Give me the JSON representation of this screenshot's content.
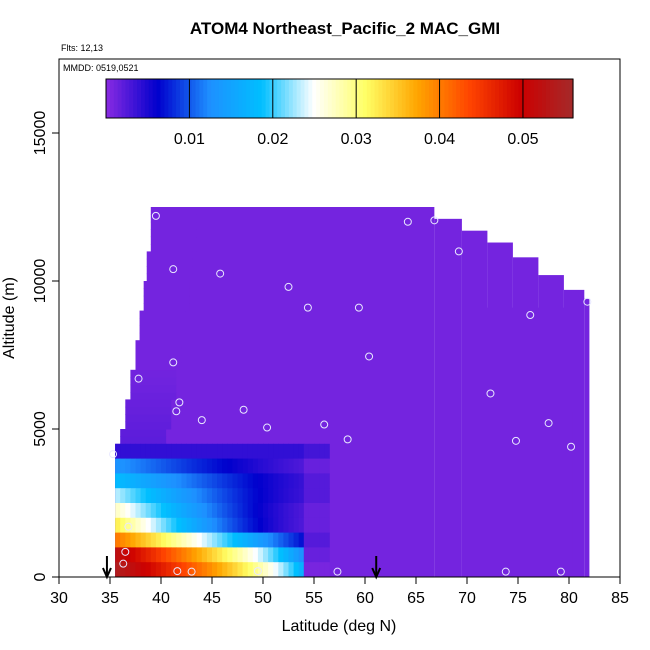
{
  "chart_data": {
    "type": "heatmap",
    "title": "ATOM4 Northeast_Pacific_2 MAC_GMI",
    "flights_label": "Flts: 12,13",
    "dates_label": "MMDD: 0519,0521",
    "xlabel": "Latitude (deg N)",
    "ylabel": "Altitude (m)",
    "xlim": [
      30,
      85
    ],
    "ylim": [
      0,
      17500
    ],
    "x_ticks": [
      "30",
      "35",
      "40",
      "45",
      "50",
      "55",
      "60",
      "65",
      "70",
      "75",
      "80",
      "85"
    ],
    "y_ticks": [
      "0",
      "5000",
      "10000",
      "15000"
    ],
    "colorbar": {
      "range": [
        0.0,
        0.056
      ],
      "ticks": [
        "0.01",
        "0.02",
        "0.03",
        "0.04",
        "0.05"
      ],
      "stops": [
        "#8a2be2",
        "#0000cd",
        "#1e90ff",
        "#00bfff",
        "#ffffff",
        "#ffff66",
        "#ffa500",
        "#ff4500",
        "#cc0000",
        "#a52a2a"
      ]
    },
    "background_value": 0.001,
    "envelope": {
      "top_steps": [
        {
          "lat": 39.2,
          "alt": 12500
        },
        {
          "lat": 66.8,
          "alt": 12100
        },
        {
          "lat": 69.5,
          "alt": 11700
        },
        {
          "lat": 72.0,
          "alt": 11300
        },
        {
          "lat": 74.5,
          "alt": 10800
        },
        {
          "lat": 77.0,
          "alt": 10200
        },
        {
          "lat": 79.5,
          "alt": 9700
        },
        {
          "lat": 81.5,
          "alt": 9400
        },
        {
          "lat": 82.0,
          "alt": 9100
        }
      ],
      "right_steps": [
        {
          "alt": 9100,
          "lat": 82.0
        },
        {
          "alt": 8700,
          "lat": 81.2
        },
        {
          "alt": 5600,
          "lat": 80.8
        },
        {
          "alt": 4200,
          "lat": 80.3
        },
        {
          "alt": 2000,
          "lat": 80.0
        },
        {
          "alt": 300,
          "lat": 79.5
        }
      ],
      "left_edge": [
        {
          "alt": 12500,
          "lat": 39.0
        },
        {
          "alt": 11000,
          "lat": 38.6
        },
        {
          "alt": 10000,
          "lat": 38.3
        },
        {
          "alt": 9000,
          "lat": 37.9
        },
        {
          "alt": 8000,
          "lat": 37.5
        },
        {
          "alt": 7000,
          "lat": 37.0
        },
        {
          "alt": 6000,
          "lat": 36.5
        },
        {
          "alt": 5000,
          "lat": 36.0
        },
        {
          "alt": 4400,
          "lat": 35.5
        },
        {
          "alt": 4000,
          "lat": 35.5
        },
        {
          "alt": 0,
          "lat": 35.5
        }
      ]
    },
    "plume": {
      "lat_range": [
        35.5,
        56.5
      ],
      "alt_range": [
        0,
        4500
      ],
      "rows": [
        {
          "alt0": 4000,
          "alt1": 4500,
          "left": 0.004,
          "right": 0.004,
          "decay": 0.5
        },
        {
          "alt0": 3500,
          "alt1": 4000,
          "left": 0.013,
          "right": 0.002,
          "decay": 0.4
        },
        {
          "alt0": 3000,
          "alt1": 3500,
          "left": 0.018,
          "right": 0.003,
          "decay": 0.45
        },
        {
          "alt0": 2500,
          "alt1": 3000,
          "left": 0.023,
          "right": 0.003,
          "decay": 0.55
        },
        {
          "alt0": 2000,
          "alt1": 2500,
          "left": 0.027,
          "right": 0.002,
          "decay": 0.55
        },
        {
          "alt0": 1500,
          "alt1": 2000,
          "left": 0.032,
          "right": 0.002,
          "decay": 0.6
        },
        {
          "alt0": 1000,
          "alt1": 1500,
          "left": 0.04,
          "right": 0.003,
          "decay": 0.3
        },
        {
          "alt0": 500,
          "alt1": 1000,
          "left": 0.052,
          "right": 0.002,
          "decay": 0.15
        },
        {
          "alt0": 0,
          "alt1": 500,
          "left": 0.054,
          "right": 0.001,
          "decay": 0.08
        }
      ]
    },
    "points": [
      {
        "lat": 39.5,
        "alt": 12200
      },
      {
        "lat": 64.2,
        "alt": 12000
      },
      {
        "lat": 66.8,
        "alt": 12050
      },
      {
        "lat": 69.2,
        "alt": 11000
      },
      {
        "lat": 41.2,
        "alt": 10400
      },
      {
        "lat": 45.8,
        "alt": 10250
      },
      {
        "lat": 52.5,
        "alt": 9800
      },
      {
        "lat": 54.4,
        "alt": 9100
      },
      {
        "lat": 59.4,
        "alt": 9100
      },
      {
        "lat": 76.2,
        "alt": 8850
      },
      {
        "lat": 81.8,
        "alt": 9300
      },
      {
        "lat": 60.4,
        "alt": 7450
      },
      {
        "lat": 41.2,
        "alt": 7250
      },
      {
        "lat": 37.8,
        "alt": 6700
      },
      {
        "lat": 72.3,
        "alt": 6200
      },
      {
        "lat": 41.8,
        "alt": 5900
      },
      {
        "lat": 41.5,
        "alt": 5600
      },
      {
        "lat": 48.1,
        "alt": 5650
      },
      {
        "lat": 44.0,
        "alt": 5300
      },
      {
        "lat": 50.4,
        "alt": 5050
      },
      {
        "lat": 56.0,
        "alt": 5150
      },
      {
        "lat": 78.0,
        "alt": 5200
      },
      {
        "lat": 58.3,
        "alt": 4650
      },
      {
        "lat": 74.8,
        "alt": 4600
      },
      {
        "lat": 80.2,
        "alt": 4400
      },
      {
        "lat": 35.3,
        "alt": 4150
      },
      {
        "lat": 36.8,
        "alt": 1700
      },
      {
        "lat": 36.5,
        "alt": 850
      },
      {
        "lat": 36.3,
        "alt": 450
      },
      {
        "lat": 41.6,
        "alt": 200
      },
      {
        "lat": 43.0,
        "alt": 180
      },
      {
        "lat": 49.5,
        "alt": 200
      },
      {
        "lat": 57.3,
        "alt": 180
      },
      {
        "lat": 73.8,
        "alt": 180
      },
      {
        "lat": 79.2,
        "alt": 180
      }
    ],
    "arrows": [
      {
        "lat": 34.7
      },
      {
        "lat": 61.1
      }
    ],
    "grid": false
  }
}
